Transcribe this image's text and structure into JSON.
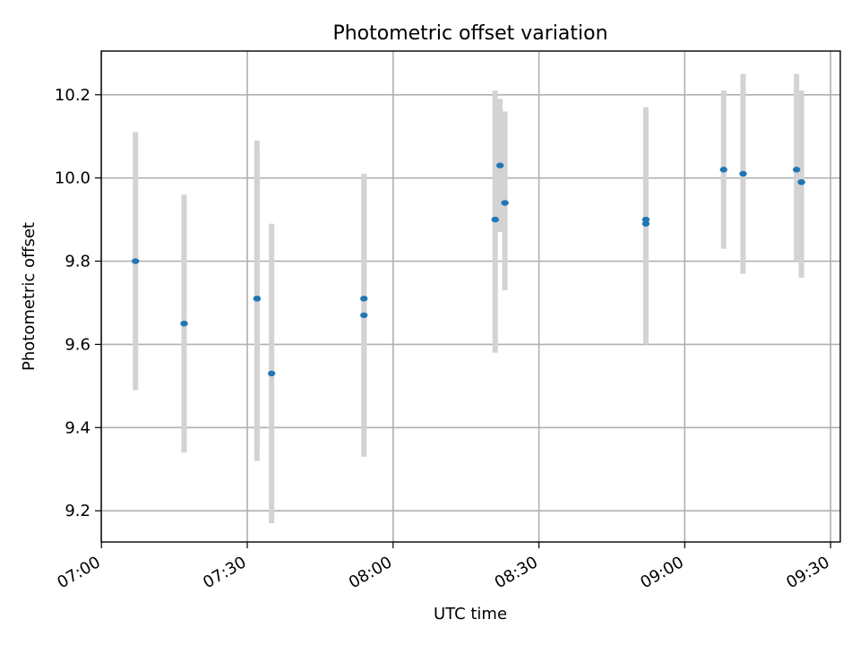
{
  "chart_data": {
    "type": "scatter",
    "title": "Photometric offset variation",
    "xlabel": "UTC time",
    "ylabel": "Photometric offset",
    "x_unit": "HH:MM UTC",
    "xlim": [
      "06:59:57",
      "09:32:00"
    ],
    "ylim": [
      9.125,
      10.305
    ],
    "x_ticks": [
      "07:00",
      "07:30",
      "08:00",
      "08:30",
      "09:00",
      "09:30"
    ],
    "y_ticks": [
      9.2,
      9.4,
      9.6,
      9.8,
      10.0,
      10.2
    ],
    "y_tick_labels": [
      "9.2",
      "9.4",
      "9.6",
      "9.8",
      "10.0",
      "10.2"
    ],
    "grid": true,
    "marker_color": "#1f77b4",
    "errorbar_color": "#d3d3d3",
    "points": [
      {
        "x": "07:07",
        "y": 9.8,
        "ymin": 9.49,
        "ymax": 10.11
      },
      {
        "x": "07:17",
        "y": 9.65,
        "ymin": 9.34,
        "ymax": 9.96
      },
      {
        "x": "07:32",
        "y": 9.71,
        "ymin": 9.32,
        "ymax": 10.09
      },
      {
        "x": "07:32",
        "y": 9.71,
        "ymin": 9.36,
        "ymax": 10.06
      },
      {
        "x": "07:35",
        "y": 9.53,
        "ymin": 9.17,
        "ymax": 9.89
      },
      {
        "x": "07:54",
        "y": 9.67,
        "ymin": 9.33,
        "ymax": 10.01
      },
      {
        "x": "07:54",
        "y": 9.71,
        "ymin": 9.41,
        "ymax": 10.0
      },
      {
        "x": "08:21",
        "y": 9.9,
        "ymin": 9.58,
        "ymax": 10.21
      },
      {
        "x": "08:22",
        "y": 10.03,
        "ymin": 9.87,
        "ymax": 10.19
      },
      {
        "x": "08:23",
        "y": 9.94,
        "ymin": 9.73,
        "ymax": 10.16
      },
      {
        "x": "08:52",
        "y": 9.89,
        "ymin": 9.6,
        "ymax": 10.17
      },
      {
        "x": "08:52",
        "y": 9.9,
        "ymin": 9.62,
        "ymax": 10.17
      },
      {
        "x": "09:08",
        "y": 10.02,
        "ymin": 9.83,
        "ymax": 10.21
      },
      {
        "x": "09:12",
        "y": 10.01,
        "ymin": 9.77,
        "ymax": 10.25
      },
      {
        "x": "09:23",
        "y": 10.02,
        "ymin": 9.8,
        "ymax": 10.25
      },
      {
        "x": "09:24",
        "y": 9.99,
        "ymin": 9.76,
        "ymax": 10.21
      },
      {
        "x": "09:24",
        "y": 9.99,
        "ymin": 9.77,
        "ymax": 10.21
      }
    ]
  }
}
